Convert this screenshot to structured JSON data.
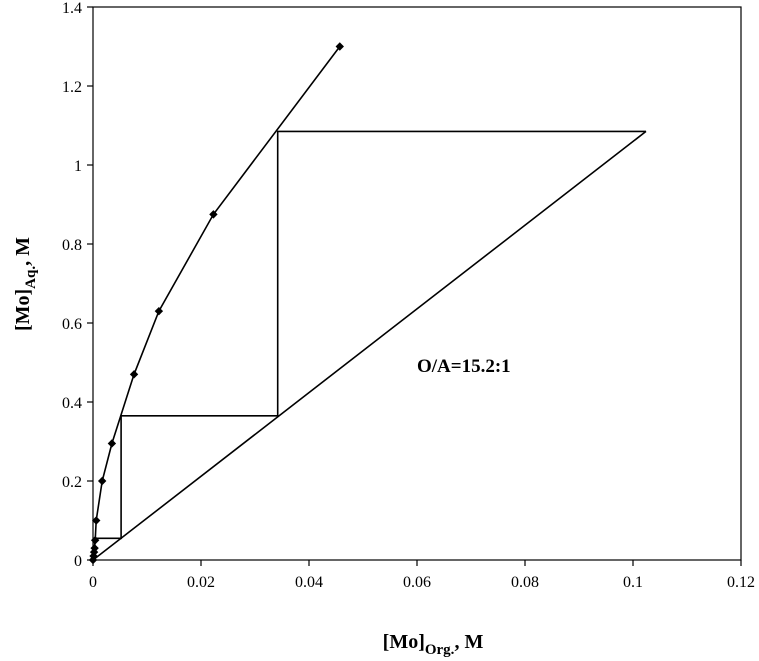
{
  "chart_data": {
    "type": "line",
    "title": "",
    "xlabel": {
      "main": "[Mo]",
      "sub": "Org.",
      "suffix": ", M"
    },
    "ylabel": {
      "main": "[Mo]",
      "sub": "Aq.",
      "suffix": ", M"
    },
    "xlim": [
      0,
      0.12
    ],
    "ylim": [
      0,
      1.4
    ],
    "xticks": [
      0,
      0.02,
      0.04,
      0.06,
      0.08,
      0.1,
      0.12
    ],
    "xtick_labels": [
      "0",
      "0.02",
      "0.04",
      "0.06",
      "0.08",
      "0.1",
      "0.12"
    ],
    "yticks": [
      0,
      0.2,
      0.4,
      0.6,
      0.8,
      1.0,
      1.2,
      1.4
    ],
    "ytick_labels": [
      "0",
      "0.2",
      "0.4",
      "0.6",
      "0.8",
      "1",
      "1.2",
      "1.4"
    ],
    "grid": false,
    "legend": "none",
    "annotation": "O/A=15.2:1",
    "series": [
      {
        "style": "line-with-diamond-markers",
        "x": [
          0.0,
          0.0001,
          0.0002,
          0.0003,
          0.0004,
          0.0006,
          0.0017,
          0.0035,
          0.0076,
          0.0122,
          0.0223,
          0.0457
        ],
        "y": [
          0.0,
          0.01,
          0.02,
          0.03,
          0.05,
          0.1,
          0.2,
          0.295,
          0.47,
          0.63,
          0.875,
          1.3
        ]
      },
      {
        "style": "operating-line",
        "x": [
          0.0,
          0.1024
        ],
        "y": [
          0.0,
          1.085
        ]
      },
      {
        "style": "mccabe-thiele-stages",
        "x": [
          0.1024,
          0.0342,
          0.0342,
          0.0052,
          0.0052,
          0.0003,
          0.0003
        ],
        "y": [
          1.085,
          1.085,
          0.365,
          0.365,
          0.055,
          0.055,
          0.0
        ]
      }
    ]
  }
}
